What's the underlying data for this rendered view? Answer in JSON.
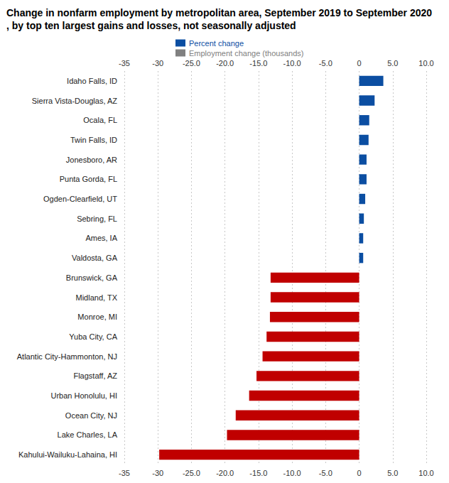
{
  "chart_data": {
    "type": "bar",
    "orientation": "horizontal",
    "title": "Change in nonfarm employment by metropolitan area, September 2019 to September 2020, by top ten largest gains and losses, not seasonally adjusted",
    "categories": [
      "Idaho Falls, ID",
      "Sierra Vista-Douglas, AZ",
      "Ocala, FL",
      "Twin Falls, ID",
      "Jonesboro, AR",
      "Punta Gorda, FL",
      "Ogden-Clearfield, UT",
      "Sebring, FL",
      "Ames, IA",
      "Valdosta, GA",
      "Brunswick, GA",
      "Midland, TX",
      "Monroe, MI",
      "Yuba City, CA",
      "Atlantic City-Hammonton, NJ",
      "Flagstaff, AZ",
      "Urban Honolulu, HI",
      "Ocean City, NJ",
      "Lake Charles, LA",
      "Kahului-Wailuku-Lahaina, HI"
    ],
    "series": [
      {
        "name": "Percent change",
        "color": "#0b4ea2",
        "colors": [
          "#0b4ea2",
          "#0b4ea2",
          "#0b4ea2",
          "#0b4ea2",
          "#0b4ea2",
          "#0b4ea2",
          "#0b4ea2",
          "#0b4ea2",
          "#0b4ea2",
          "#0b4ea2",
          "#c00000",
          "#c00000",
          "#c00000",
          "#c00000",
          "#c00000",
          "#c00000",
          "#c00000",
          "#c00000",
          "#c00000",
          "#c00000"
        ],
        "values": [
          3.6,
          2.3,
          1.5,
          1.4,
          1.1,
          1.1,
          0.9,
          0.7,
          0.6,
          0.6,
          -13.2,
          -13.2,
          -13.3,
          -13.8,
          -14.4,
          -15.3,
          -16.4,
          -18.4,
          -19.7,
          -29.8
        ]
      },
      {
        "name": "Employment change (thousands)",
        "color": "#808080",
        "values": [
          null,
          null,
          null,
          null,
          null,
          null,
          null,
          null,
          null,
          null,
          null,
          null,
          null,
          null,
          null,
          null,
          null,
          null,
          null,
          null
        ]
      }
    ],
    "xlim": [
      -35,
      10
    ],
    "xticks": [
      -35,
      -30,
      {
        "value": -25,
        "label": "-25.0"
      },
      {
        "value": -20,
        "label": "-20.0"
      },
      {
        "value": -15,
        "label": "-15.0"
      },
      {
        "value": -10,
        "label": "-10.0"
      },
      {
        "value": -5,
        "label": "-5.0"
      },
      0,
      {
        "value": 5,
        "label": "5.0"
      },
      {
        "value": 10,
        "label": "10.0"
      }
    ],
    "grid": true,
    "legend": "top"
  }
}
